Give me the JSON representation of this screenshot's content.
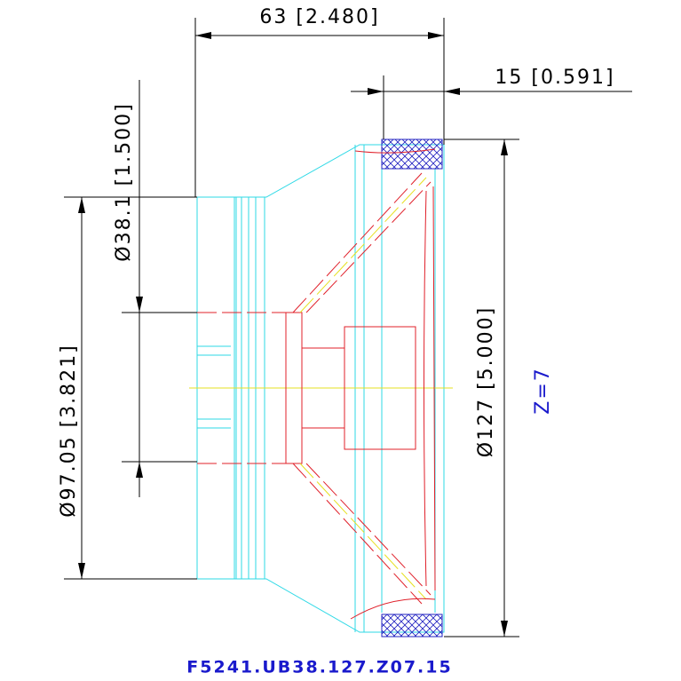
{
  "dimensions": {
    "depth": "63 [2.480]",
    "flange": "15 [0.591]",
    "throat": "Ø38.1 [1.500]",
    "mount": "Ø97.05 [3.821]",
    "outer": "Ø127 [5.000]"
  },
  "annotation": "Z=7",
  "part_number": "F5241.UB38.127.Z07.15"
}
